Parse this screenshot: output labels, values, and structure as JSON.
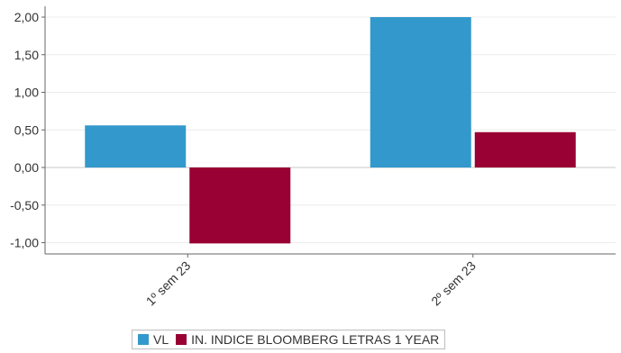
{
  "chart_data": {
    "type": "bar",
    "title": "",
    "xlabel": "",
    "ylabel": "",
    "categories": [
      "1º sem 23",
      "2º sem 23"
    ],
    "series": [
      {
        "name": "VL",
        "values": [
          0.56,
          2.0
        ],
        "color": "#3399cc"
      },
      {
        "name": "IN. INDICE BLOOMBERG LETRAS 1 YEAR",
        "values": [
          -1.01,
          0.47
        ],
        "color": "#990033"
      }
    ],
    "ylim": [
      -1.15,
      2.1
    ],
    "yticks": [
      "2,00",
      "1,50",
      "1,00",
      "0,50",
      "0,00",
      "-0,50",
      "-1,00"
    ],
    "ytick_values": [
      2.0,
      1.5,
      1.0,
      0.5,
      0.0,
      -0.5,
      -1.0
    ],
    "grid": true,
    "legend_position": "bottom"
  }
}
